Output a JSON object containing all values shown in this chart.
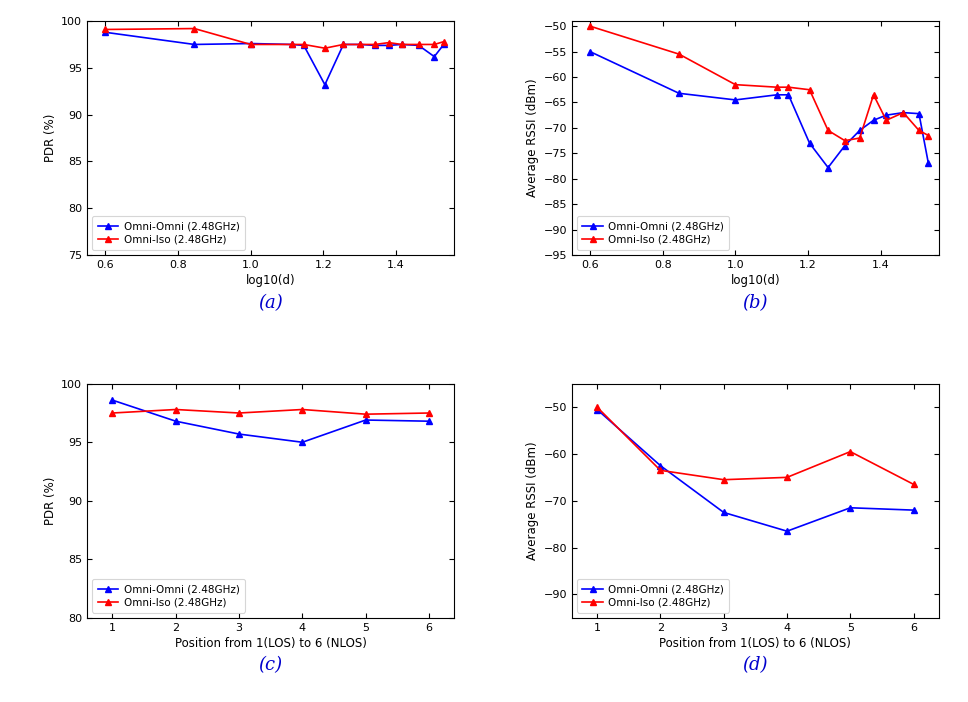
{
  "subplot_a": {
    "title": "(a)",
    "xlabel": "log10(d)",
    "ylabel": "PDR (%)",
    "ylim": [
      75,
      100
    ],
    "yticks": [
      75,
      80,
      85,
      90,
      95,
      100
    ],
    "xlim": [
      0.55,
      1.56
    ],
    "xticks": [
      0.6,
      0.8,
      1.0,
      1.2,
      1.4
    ],
    "blue_x": [
      0.6,
      0.845,
      1.0,
      1.114,
      1.146,
      1.204,
      1.255,
      1.301,
      1.342,
      1.38,
      1.415,
      1.462,
      1.505,
      1.531
    ],
    "blue_y": [
      98.8,
      97.5,
      97.6,
      97.5,
      97.4,
      93.2,
      97.5,
      97.5,
      97.4,
      97.4,
      97.5,
      97.4,
      96.2,
      97.5
    ],
    "red_x": [
      0.6,
      0.845,
      1.0,
      1.114,
      1.146,
      1.204,
      1.255,
      1.301,
      1.342,
      1.38,
      1.415,
      1.462,
      1.505,
      1.531
    ],
    "red_y": [
      99.1,
      99.2,
      97.5,
      97.5,
      97.5,
      97.1,
      97.5,
      97.5,
      97.5,
      97.7,
      97.5,
      97.5,
      97.5,
      97.8
    ]
  },
  "subplot_b": {
    "title": "(b)",
    "xlabel": "log10(d)",
    "ylabel": "Average RSSI (dBm)",
    "ylim": [
      -95,
      -49
    ],
    "yticks": [
      -95,
      -90,
      -85,
      -80,
      -75,
      -70,
      -65,
      -60,
      -55,
      -50
    ],
    "xlim": [
      0.55,
      1.56
    ],
    "xticks": [
      0.6,
      0.8,
      1.0,
      1.2,
      1.4
    ],
    "blue_x": [
      0.6,
      0.845,
      1.0,
      1.114,
      1.146,
      1.204,
      1.255,
      1.301,
      1.342,
      1.38,
      1.415,
      1.462,
      1.505,
      1.531
    ],
    "blue_y": [
      -55.0,
      -63.2,
      -64.5,
      -63.5,
      -63.5,
      -73.0,
      -77.8,
      -73.5,
      -70.5,
      -68.5,
      -67.5,
      -67.0,
      -67.2,
      -77.0
    ],
    "red_x": [
      0.6,
      0.845,
      1.0,
      1.114,
      1.146,
      1.204,
      1.255,
      1.301,
      1.342,
      1.38,
      1.415,
      1.462,
      1.505,
      1.531
    ],
    "red_y": [
      -50.0,
      -55.5,
      -61.5,
      -62.0,
      -62.0,
      -62.5,
      -70.5,
      -72.5,
      -72.0,
      -63.5,
      -68.5,
      -67.0,
      -70.5,
      -71.5
    ]
  },
  "subplot_c": {
    "title": "(c)",
    "xlabel": "Position from 1(LOS) to 6 (NLOS)",
    "ylabel": "PDR (%)",
    "ylim": [
      80,
      100
    ],
    "yticks": [
      80,
      85,
      90,
      95,
      100
    ],
    "xlim": [
      0.6,
      6.4
    ],
    "xticks": [
      1,
      2,
      3,
      4,
      5,
      6
    ],
    "blue_x": [
      1,
      2,
      3,
      4,
      5,
      6
    ],
    "blue_y": [
      98.6,
      96.8,
      95.7,
      95.0,
      96.9,
      96.8
    ],
    "red_x": [
      1,
      2,
      3,
      4,
      5,
      6
    ],
    "red_y": [
      97.5,
      97.8,
      97.5,
      97.8,
      97.4,
      97.5
    ]
  },
  "subplot_d": {
    "title": "(d)",
    "xlabel": "Position from 1(LOS) to 6 (NLOS)",
    "ylabel": "Average RSSI (dBm)",
    "ylim": [
      -95,
      -45
    ],
    "yticks": [
      -90,
      -80,
      -70,
      -60,
      -50
    ],
    "xlim": [
      0.6,
      6.4
    ],
    "xticks": [
      1,
      2,
      3,
      4,
      5,
      6
    ],
    "blue_x": [
      1,
      2,
      3,
      4,
      5,
      6
    ],
    "blue_y": [
      -50.5,
      -62.5,
      -72.5,
      -76.5,
      -71.5,
      -72.0
    ],
    "red_x": [
      1,
      2,
      3,
      4,
      5,
      6
    ],
    "red_y": [
      -50.0,
      -63.5,
      -65.5,
      -65.0,
      -59.5,
      -66.5
    ]
  },
  "blue_color": "#0000FF",
  "red_color": "#FF0000",
  "legend_labels": [
    "Omni-Omni (2.48GHz)",
    "Omni-Iso (2.48GHz)"
  ],
  "marker": "^",
  "markersize": 5,
  "linewidth": 1.2,
  "title_color": "#0000CD",
  "title_fontsize": 13
}
